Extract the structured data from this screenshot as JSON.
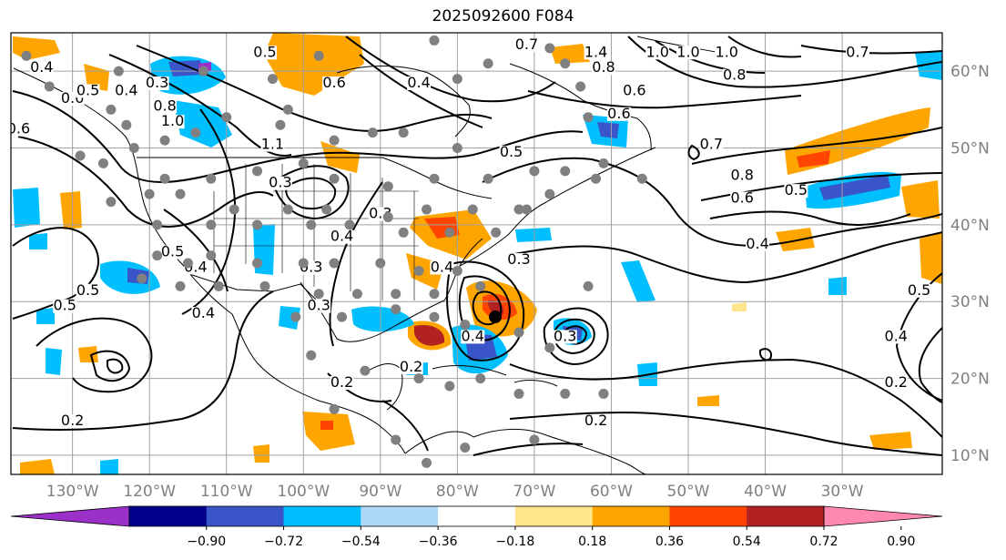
{
  "title": "2025092600 F084",
  "colors": {
    "background": "#ffffff",
    "grid": "#a0a0a0",
    "coast": "#000000",
    "obs_dot": "#808080",
    "storm_center": "#000000"
  },
  "map": {
    "projection": "equirectangular",
    "lon_range": [
      -138,
      -17
    ],
    "lat_range": [
      7.5,
      65
    ],
    "lat_labels": [
      "10°N",
      "20°N",
      "30°N",
      "40°N",
      "50°N",
      "60°N"
    ],
    "lon_labels": [
      "130°W",
      "120°W",
      "110°W",
      "100°W",
      "90°W",
      "80°W",
      "70°W",
      "60°W",
      "50°W",
      "40°W",
      "30°W"
    ],
    "contour_labels": [
      "0.7",
      "0.4",
      "0.6",
      "0.6",
      "0.5",
      "0.4",
      "1.0",
      "0.3",
      "0.5",
      "0.4",
      "1.1",
      "0.8",
      "0.3",
      "0.5",
      "0.4",
      "0.6",
      "0.7",
      "1.4",
      "1.0",
      "1.0",
      "0.8",
      "0.6",
      "1.0",
      "0.8",
      "0.7",
      "0.6",
      "0.8",
      "0.7",
      "0.6",
      "0.5",
      "0.4",
      "0.6",
      "0.5",
      "0.4",
      "0.2",
      "0.3",
      "0.4",
      "0.3",
      "0.5",
      "0.4",
      "0.5",
      "0.5",
      "0.2",
      "0.2",
      "0.2",
      "0.2",
      "0.3",
      "0.4",
      "0.3",
      "0.3",
      "0.4"
    ]
  },
  "colorbar": {
    "ticks": [
      "−0.90",
      "−0.72",
      "−0.54",
      "−0.36",
      "−0.18",
      "0.18",
      "0.36",
      "0.54",
      "0.72",
      "0.90"
    ],
    "colors": [
      "#9b30c8",
      "#00008b",
      "#3a55c8",
      "#00bfff",
      "#add8f7",
      "#ffffff",
      "#ffe68c",
      "#ffa500",
      "#ff4500",
      "#b22222",
      "#ff88b0"
    ]
  }
}
